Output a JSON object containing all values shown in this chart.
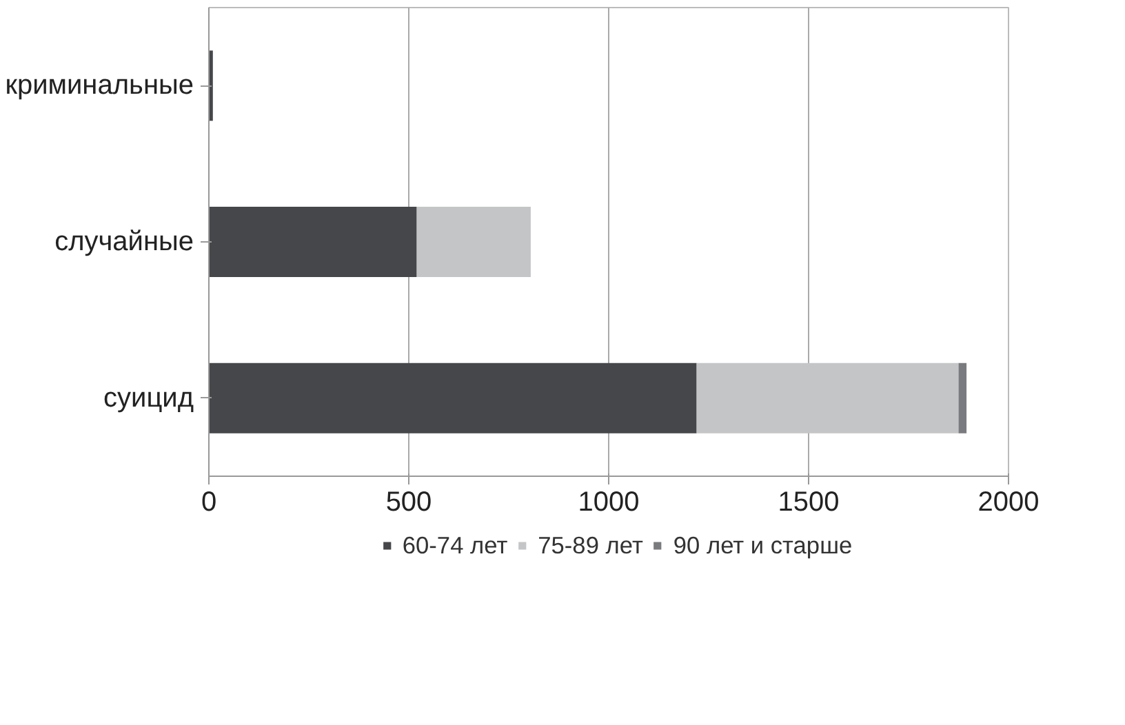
{
  "chart_data": {
    "type": "bar",
    "orientation": "horizontal",
    "stacked": true,
    "categories": [
      "криминальные",
      "случайные",
      "суицид"
    ],
    "series": [
      {
        "name": "60-74 лет",
        "color": "#46474a",
        "values": [
          10,
          520,
          1220
        ]
      },
      {
        "name": "75-89 лет",
        "color": "#c4c5c7",
        "values": [
          0,
          285,
          655
        ]
      },
      {
        "name": "90 лет и старше",
        "color": "#7a7b7e",
        "values": [
          0,
          0,
          20
        ]
      }
    ],
    "xlim": [
      0,
      2000
    ],
    "xticks": [
      0,
      500,
      1000,
      1500,
      2000
    ],
    "grid": "x",
    "legend": "bottom"
  }
}
